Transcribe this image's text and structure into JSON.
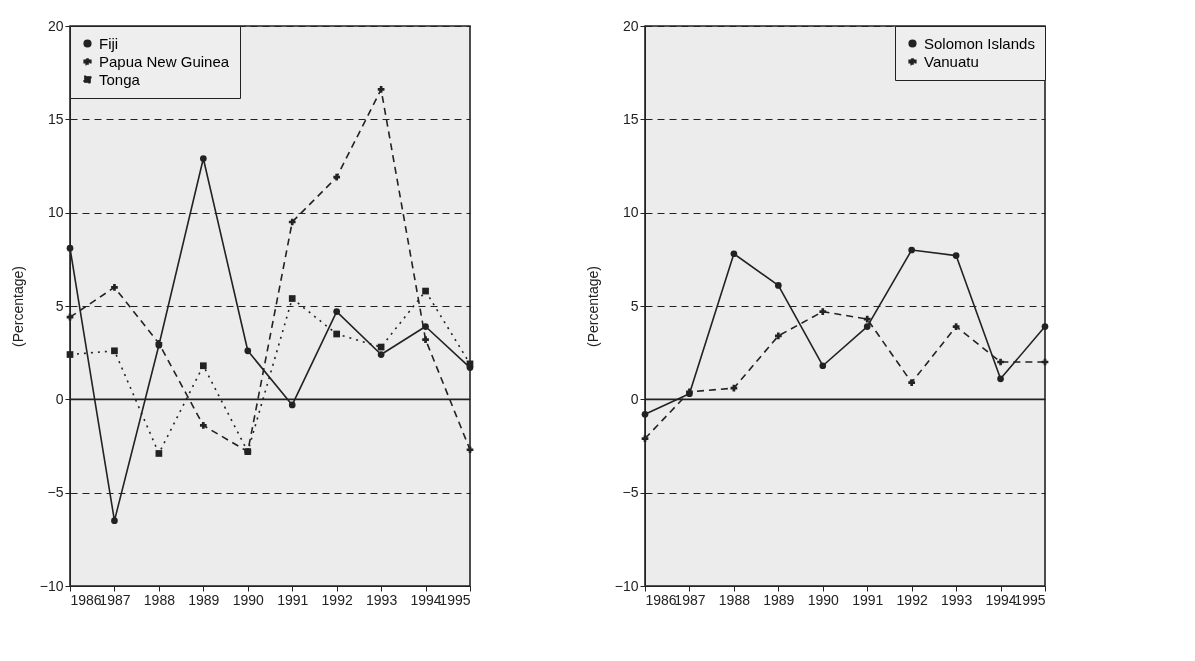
{
  "chart_data": [
    {
      "type": "line",
      "ylabel": "(Percentage)",
      "x": [
        1986,
        1987,
        1988,
        1989,
        1990,
        1991,
        1992,
        1993,
        1994,
        1995
      ],
      "xlim": [
        1986,
        1995
      ],
      "xticks": [
        1986,
        1987,
        1988,
        1989,
        1990,
        1991,
        1992,
        1993,
        1994,
        1995
      ],
      "ylim": [
        -10,
        20
      ],
      "yticks": [
        -10,
        -5,
        0,
        5,
        10,
        15,
        20
      ],
      "grid": "y",
      "legend": "top left",
      "ref_lines": [
        {
          "axis": "y",
          "value": 0,
          "color": "#222222",
          "line_style": "solid"
        }
      ],
      "series": [
        {
          "name": "Fiji",
          "color": "#222222",
          "marker": "circle",
          "line_style": "solid",
          "values": [
            8.1,
            -6.5,
            2.9,
            12.9,
            2.6,
            -0.3,
            4.7,
            2.4,
            3.9,
            1.7
          ]
        },
        {
          "name": "Papua New Guinea",
          "color": "#222222",
          "marker": "cross",
          "line_style": "dashed",
          "values": [
            4.4,
            6.0,
            3.0,
            -1.4,
            -2.8,
            9.5,
            11.9,
            16.6,
            3.2,
            -2.7
          ]
        },
        {
          "name": "Tonga",
          "color": "#222222",
          "marker": "square",
          "line_style": "dotted",
          "values": [
            2.4,
            2.6,
            -2.9,
            1.8,
            -2.8,
            5.4,
            3.5,
            2.8,
            5.8,
            1.9
          ]
        }
      ]
    },
    {
      "type": "line",
      "ylabel": "(Percentage)",
      "x": [
        1986,
        1987,
        1988,
        1989,
        1990,
        1991,
        1992,
        1993,
        1994,
        1995
      ],
      "xlim": [
        1986,
        1995
      ],
      "xticks": [
        1986,
        1987,
        1988,
        1989,
        1990,
        1991,
        1992,
        1993,
        1994,
        1995
      ],
      "ylim": [
        -10,
        20
      ],
      "yticks": [
        -10,
        -5,
        0,
        5,
        10,
        15,
        20
      ],
      "grid": "y",
      "legend": "top right",
      "ref_lines": [
        {
          "axis": "y",
          "value": 0,
          "color": "#222222",
          "line_style": "solid"
        }
      ],
      "series": [
        {
          "name": "Solomon Islands",
          "color": "#222222",
          "marker": "circle",
          "line_style": "solid",
          "values": [
            -0.8,
            0.3,
            7.8,
            6.1,
            1.8,
            3.9,
            8.0,
            7.7,
            1.1,
            3.9
          ]
        },
        {
          "name": "Vanuatu",
          "color": "#222222",
          "marker": "cross",
          "line_style": "dashed",
          "values": [
            -2.1,
            0.4,
            0.6,
            3.4,
            4.7,
            4.3,
            0.9,
            3.9,
            2.0,
            2.0
          ]
        }
      ]
    }
  ]
}
